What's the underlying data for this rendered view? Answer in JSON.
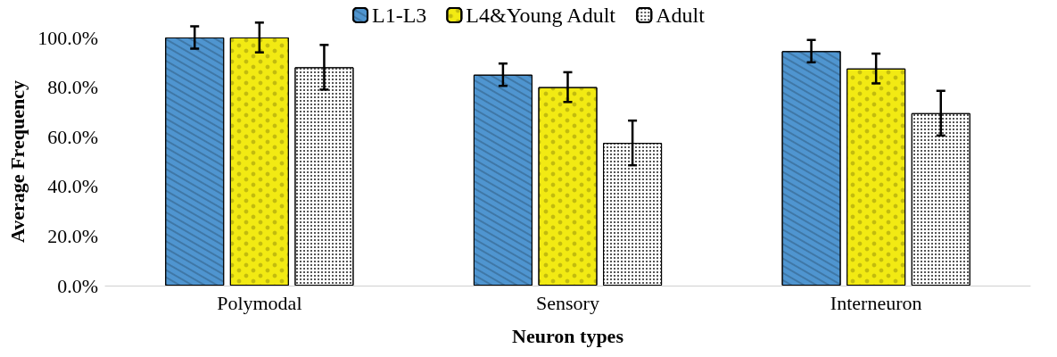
{
  "chart_data": {
    "type": "bar",
    "xlabel": "Neuron types",
    "ylabel": "Average Frequency",
    "categories": [
      "Polymodal",
      "Sensory",
      "Interneuron"
    ],
    "series": [
      {
        "name": "L1-L3",
        "color": "#4f95d0",
        "values": [
          100,
          85,
          94.5
        ],
        "errors": [
          4.5,
          4.5,
          4.5
        ]
      },
      {
        "name": "L4&Young Adult",
        "color": "#f2ea13",
        "values": [
          100,
          80,
          87.5
        ],
        "errors": [
          6,
          6,
          6
        ]
      },
      {
        "name": "Adult",
        "color": "#ffffff",
        "values": [
          88,
          57.5,
          69.5
        ],
        "errors": [
          9,
          9,
          9
        ]
      }
    ],
    "ylim": [
      0,
      100
    ],
    "yticks": [
      {
        "value": 0,
        "label": "0.0%"
      },
      {
        "value": 20,
        "label": "20.0%"
      },
      {
        "value": 40,
        "label": "40.0%"
      },
      {
        "value": 60,
        "label": "60.0%"
      },
      {
        "value": 80,
        "label": "80.0%"
      },
      {
        "value": 100,
        "label": "100.0%"
      }
    ],
    "grid": false,
    "legend": "top"
  }
}
